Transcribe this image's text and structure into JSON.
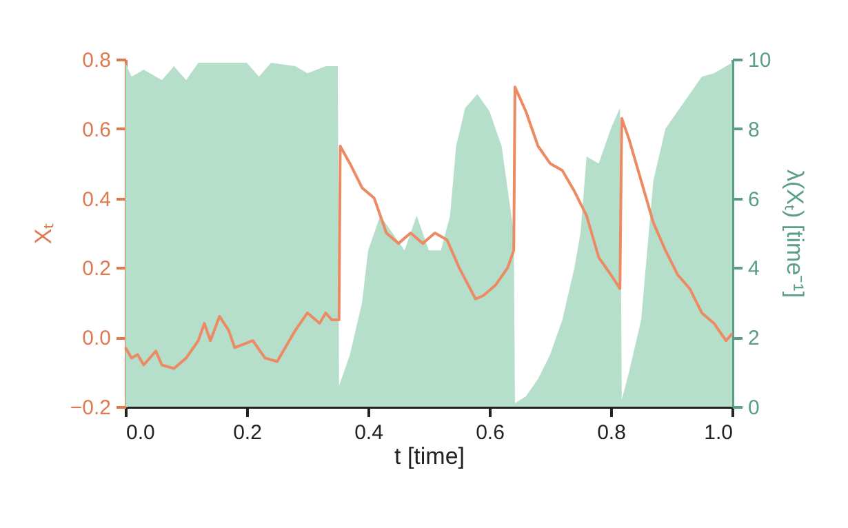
{
  "chart_data": {
    "type": "line",
    "xlabel": "t [time]",
    "ylabel": "Xₜ",
    "y2label": "λ(Xₜ) [time⁻¹]",
    "xlim": [
      0,
      1
    ],
    "xticks": [
      {
        "value": 0,
        "label": "0.0"
      },
      {
        "value": 0.2,
        "label": "0.2"
      },
      {
        "value": 0.4,
        "label": "0.4"
      },
      {
        "value": 0.6,
        "label": "0.6"
      },
      {
        "value": 0.8,
        "label": "0.8"
      },
      {
        "value": 1,
        "label": "1.0"
      }
    ],
    "ylim": [
      -0.2,
      0.8
    ],
    "yticks": [
      {
        "value": -0.2,
        "label": "−0.2"
      },
      {
        "value": 0,
        "label": "0.0"
      },
      {
        "value": 0.2,
        "label": "0.2"
      },
      {
        "value": 0.4,
        "label": "0.4"
      },
      {
        "value": 0.6,
        "label": "0.6"
      },
      {
        "value": 0.8,
        "label": "0.8"
      }
    ],
    "y2lim": [
      0,
      10
    ],
    "y2ticks": [
      0,
      2,
      4,
      6,
      8,
      10
    ],
    "grid": false,
    "series": [
      {
        "type": "area",
        "axis": "y2",
        "color": "#b6dfcb",
        "x": [
          0,
          0.01,
          0.03,
          0.06,
          0.08,
          0.1,
          0.12,
          0.16,
          0.2,
          0.22,
          0.24,
          0.28,
          0.3,
          0.33,
          0.35,
          0.352,
          0.37,
          0.39,
          0.4,
          0.42,
          0.44,
          0.46,
          0.48,
          0.5,
          0.52,
          0.535,
          0.545,
          0.56,
          0.58,
          0.6,
          0.62,
          0.64,
          0.642,
          0.66,
          0.68,
          0.7,
          0.72,
          0.74,
          0.75,
          0.76,
          0.78,
          0.8,
          0.815,
          0.818,
          0.83,
          0.85,
          0.86,
          0.87,
          0.89,
          0.91,
          0.93,
          0.95,
          0.97,
          1
        ],
        "values": [
          9.9,
          9.5,
          9.7,
          9.4,
          9.8,
          9.4,
          9.9,
          9.9,
          9.9,
          9.5,
          9.9,
          9.8,
          9.6,
          9.8,
          9.8,
          0.6,
          1.5,
          3,
          4.5,
          5.5,
          5,
          4.5,
          5.5,
          4.5,
          4.5,
          5.5,
          7.5,
          8.6,
          9,
          8.5,
          7.5,
          5,
          0.1,
          0.3,
          0.8,
          1.5,
          2.5,
          4,
          5,
          7.2,
          7,
          8,
          8.6,
          0.2,
          1,
          2.5,
          4.5,
          6.5,
          8,
          8.5,
          9,
          9.5,
          9.6,
          9.9
        ]
      },
      {
        "color": "#ec8a64",
        "x": [
          0,
          0.01,
          0.02,
          0.03,
          0.05,
          0.06,
          0.08,
          0.1,
          0.12,
          0.13,
          0.14,
          0.155,
          0.17,
          0.18,
          0.21,
          0.23,
          0.25,
          0.27,
          0.28,
          0.3,
          0.32,
          0.33,
          0.34,
          0.352,
          0.354,
          0.37,
          0.39,
          0.41,
          0.43,
          0.45,
          0.47,
          0.49,
          0.51,
          0.53,
          0.55,
          0.577,
          0.59,
          0.61,
          0.63,
          0.64,
          0.642,
          0.66,
          0.68,
          0.7,
          0.72,
          0.74,
          0.76,
          0.78,
          0.8,
          0.815,
          0.818,
          0.83,
          0.85,
          0.87,
          0.89,
          0.91,
          0.93,
          0.95,
          0.97,
          0.99,
          1
        ],
        "values": [
          -0.03,
          -0.06,
          -0.05,
          -0.08,
          -0.04,
          -0.08,
          -0.09,
          -0.06,
          -0.01,
          0.04,
          -0.01,
          0.06,
          0.02,
          -0.03,
          -0.01,
          -0.06,
          -0.07,
          -0.01,
          0.02,
          0.07,
          0.04,
          0.07,
          0.05,
          0.05,
          0.55,
          0.5,
          0.43,
          0.4,
          0.3,
          0.27,
          0.3,
          0.27,
          0.3,
          0.28,
          0.2,
          0.11,
          0.12,
          0.15,
          0.2,
          0.25,
          0.72,
          0.65,
          0.55,
          0.5,
          0.48,
          0.42,
          0.35,
          0.23,
          0.18,
          0.14,
          0.63,
          0.57,
          0.45,
          0.33,
          0.25,
          0.18,
          0.14,
          0.07,
          0.04,
          -0.01,
          0.01
        ]
      }
    ]
  }
}
